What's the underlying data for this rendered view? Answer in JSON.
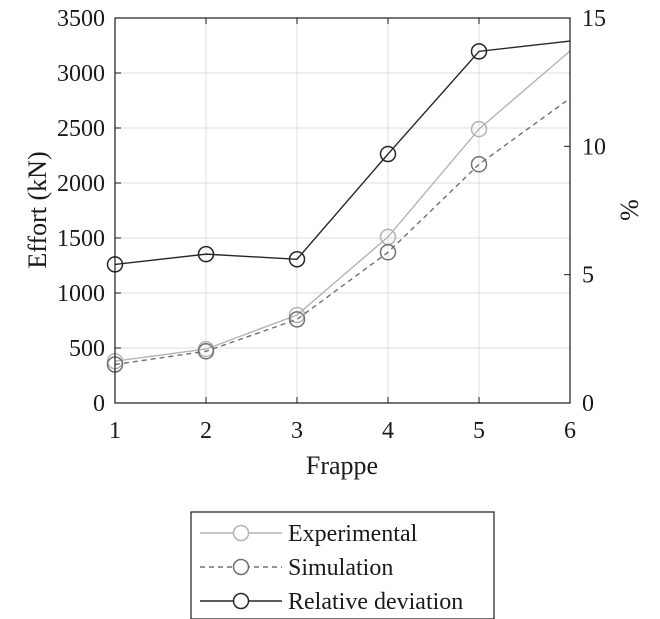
{
  "chart_data": {
    "type": "line",
    "x": [
      1,
      2,
      3,
      4,
      5,
      6
    ],
    "xlabel": "Frappe",
    "ylabel_left": "Effort (kN)",
    "ylabel_right": "%",
    "xlim": [
      1,
      6
    ],
    "ylim_left": [
      0,
      3500
    ],
    "ylim_right": [
      0,
      15
    ],
    "x_ticks": [
      1,
      2,
      3,
      4,
      5,
      6
    ],
    "y_left_ticks": [
      0,
      500,
      1000,
      1500,
      2000,
      2500,
      3000,
      3500
    ],
    "y_right_ticks": [
      0,
      5,
      10,
      15
    ],
    "grid": true,
    "legend_position": "bottom",
    "series": [
      {
        "name": "Experimental",
        "axis": "left",
        "x": [
          1,
          2,
          3,
          4,
          5,
          6
        ],
        "values": [
          380,
          490,
          800,
          1510,
          2490,
          3200
        ],
        "marker_count": 5,
        "line_style": "solid",
        "color": "#b3b3b3"
      },
      {
        "name": "Simulation",
        "axis": "left",
        "x": [
          1,
          2,
          3,
          4,
          5,
          6
        ],
        "values": [
          350,
          470,
          760,
          1370,
          2170,
          2770
        ],
        "marker_count": 5,
        "line_style": "dashed",
        "color": "#707070"
      },
      {
        "name": "Relative deviation",
        "axis": "right",
        "x": [
          1,
          2,
          3,
          4,
          5,
          6
        ],
        "values": [
          5.4,
          5.8,
          5.6,
          9.7,
          13.7,
          14.1
        ],
        "marker_count": 5,
        "line_style": "solid",
        "color": "#262626"
      }
    ]
  }
}
